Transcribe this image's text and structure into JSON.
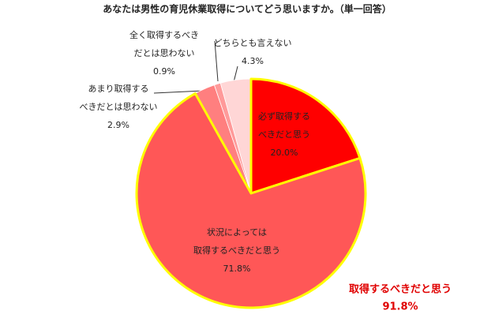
{
  "chart_data": {
    "type": "pie",
    "title": "あなたは男性の育児休業取得についてどう思いますか。（単一回答）",
    "categories": [
      [
        "必ず取得する",
        "べきだと思う"
      ],
      [
        "状況によっては",
        "取得するべきだと思う"
      ],
      [
        "あまり取得する",
        "べきだとは思わない"
      ],
      [
        "全く取得するべき",
        "だとは思わない"
      ],
      [
        "どちらとも言えない"
      ]
    ],
    "values": [
      20.0,
      71.8,
      2.9,
      0.9,
      4.3
    ],
    "value_labels": [
      "20.0%",
      "71.8%",
      "2.9%",
      "0.9%",
      "4.3%"
    ],
    "colors": [
      "#ff0000",
      "#ff5757",
      "#ff7f7f",
      "#ff9a9a",
      "#ffd6d6"
    ],
    "highlight": [
      0,
      1
    ],
    "highlight_color": "#ffff00",
    "annotation": [
      "取得するべきだと思う",
      "91.8%"
    ]
  }
}
